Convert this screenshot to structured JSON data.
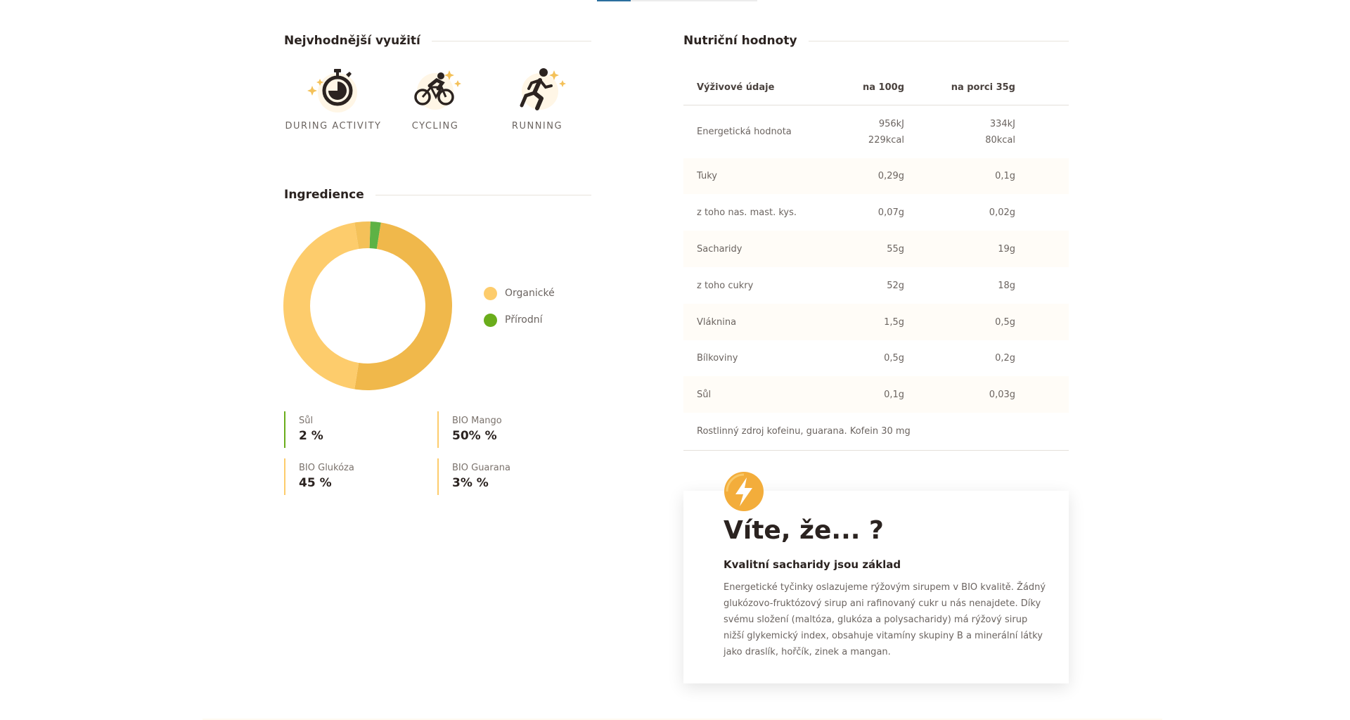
{
  "colors": {
    "orange": "#f0b84b",
    "orange_light": "#fdcc6c",
    "green": "#5db245",
    "legend_green": "#6aad1b",
    "text": "#2b2320"
  },
  "usage": {
    "title": "Nejvhodnější využití",
    "items": [
      {
        "label": "DURING ACTIVITY",
        "icon": "stopwatch-icon"
      },
      {
        "label": "CYCLING",
        "icon": "cyclist-icon"
      },
      {
        "label": "RUNNING",
        "icon": "runner-icon"
      }
    ]
  },
  "ingredients": {
    "title": "Ingredience",
    "legend": [
      {
        "label": "Organické",
        "color": "#fdcc6c"
      },
      {
        "label": "Přírodní",
        "color": "#6aad1b"
      }
    ],
    "slices": [
      {
        "name": "BIO Mango",
        "value": 50,
        "color": "#f0b84b"
      },
      {
        "name": "BIO Glukóza",
        "value": 45,
        "color": "#fdcc6c"
      },
      {
        "name": "BIO Guarana",
        "value": 3,
        "color": "#f4c159"
      },
      {
        "name": "Sůl",
        "value": 2,
        "color": "#5db245"
      }
    ],
    "items": [
      {
        "name": "Sůl",
        "value": "2 %"
      },
      {
        "name": "BIO Mango",
        "value": "50% %"
      },
      {
        "name": "BIO Glukóza",
        "value": "45 %"
      },
      {
        "name": "BIO Guarana",
        "value": "3% %"
      }
    ]
  },
  "nutrition": {
    "title": "Nutriční hodnoty",
    "headers": [
      "Výživové údaje",
      "na 100g",
      "na porci 35g"
    ],
    "rows": [
      {
        "label": "Energetická hodnota",
        "per100": "956kJ",
        "per100b": "229kcal",
        "portion": "334kJ",
        "portionb": "80kcal"
      },
      {
        "label": "Tuky",
        "per100": "0,29g",
        "portion": "0,1g"
      },
      {
        "label": "z toho nas. mast. kys.",
        "per100": "0,07g",
        "portion": "0,02g"
      },
      {
        "label": "Sacharidy",
        "per100": "55g",
        "portion": "19g"
      },
      {
        "label": "z toho cukry",
        "per100": "52g",
        "portion": "18g"
      },
      {
        "label": "Vláknina",
        "per100": "1,5g",
        "portion": "0,5g"
      },
      {
        "label": "Bílkoviny",
        "per100": "0,5g",
        "portion": "0,2g"
      },
      {
        "label": "Sůl",
        "per100": "0,1g",
        "portion": "0,03g"
      }
    ],
    "note": "Rostlinný zdroj kofeinu, guarana. Kofein 30 mg"
  },
  "tip": {
    "icon": "lightning-icon",
    "heading": "Víte, že... ?",
    "subheading": "Kvalitní sacharidy jsou základ",
    "text": "Energetické tyčinky oslazujeme rýžovým sirupem v BIO kvalitě. Žádný glukózovo-fruktózový sirup ani rafinovaný cukr u nás nenajdete. Díky svému složení (maltóza, glukóza a polysacharidy) má rýžový sirup nižší glykemický index, obsahuje vitamíny skupiny B a minerální látky jako draslík, hořčík, zinek a mangan."
  }
}
